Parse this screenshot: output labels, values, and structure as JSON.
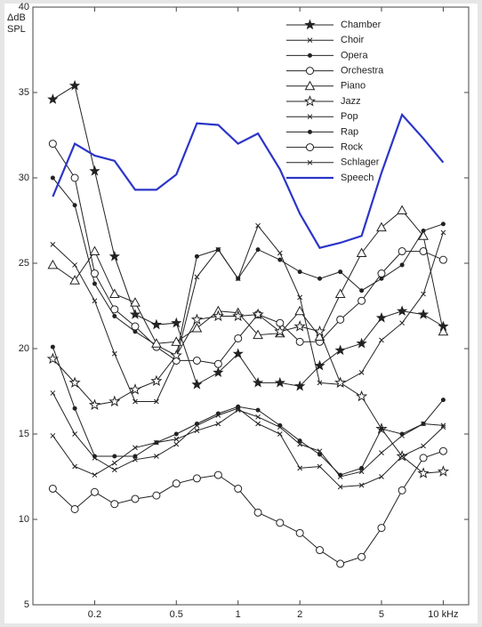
{
  "chart_data": {
    "type": "line",
    "ylabel": [
      "ΔdB",
      "SPL"
    ],
    "x": [
      0.125,
      0.16,
      0.2,
      0.25,
      0.315,
      0.4,
      0.5,
      0.63,
      0.8,
      1,
      1.25,
      1.6,
      2,
      2.5,
      3.15,
      4,
      5,
      6.3,
      8,
      10
    ],
    "xlim": [
      0.1,
      13.3
    ],
    "ylim": [
      5,
      40
    ],
    "xscale": "log",
    "xticks": [
      0.2,
      0.5,
      1,
      2,
      5,
      {
        "value": 10,
        "label": "10 kHz"
      }
    ],
    "yticks": [
      5,
      10,
      15,
      20,
      25,
      30,
      35,
      40
    ],
    "legend": "upper right",
    "series": [
      {
        "name": "Chamber",
        "color": "#222222",
        "marker": "star",
        "values": [
          34.6,
          35.4,
          30.4,
          25.4,
          22.0,
          21.4,
          21.5,
          17.9,
          18.6,
          19.7,
          18.0,
          18.0,
          17.8,
          19.0,
          19.9,
          20.3,
          21.8,
          22.2,
          22.0,
          21.3
        ]
      },
      {
        "name": "Choir",
        "color": "#222222",
        "marker": "x",
        "values": [
          26.1,
          24.9,
          22.8,
          19.7,
          16.9,
          16.9,
          19.4,
          24.2,
          25.8,
          24.1,
          27.2,
          25.6,
          23.0,
          18.0,
          17.9,
          18.6,
          20.5,
          21.5,
          23.2,
          26.8
        ]
      },
      {
        "name": "Opera",
        "color": "#222222",
        "marker": "dot",
        "values": [
          30.0,
          28.4,
          23.8,
          21.9,
          21.0,
          20.2,
          19.6,
          25.4,
          25.8,
          24.1,
          25.8,
          25.2,
          24.5,
          24.1,
          24.5,
          23.4,
          24.1,
          24.9,
          26.9,
          27.3
        ]
      },
      {
        "name": "Orchestra",
        "color": "#222222",
        "marker": "circle",
        "values": [
          32.0,
          30.0,
          24.4,
          22.3,
          21.3,
          20.1,
          19.3,
          19.3,
          19.1,
          20.6,
          22.0,
          21.5,
          20.4,
          20.4,
          21.7,
          22.8,
          24.4,
          25.7,
          25.7,
          25.2
        ]
      },
      {
        "name": "Piano",
        "color": "#222222",
        "marker": "triangle",
        "values": [
          24.9,
          24.0,
          25.7,
          23.2,
          22.7,
          20.3,
          20.4,
          21.2,
          22.2,
          22.1,
          20.8,
          20.9,
          22.2,
          20.7,
          23.2,
          25.6,
          27.1,
          28.1,
          26.6,
          21.0
        ]
      },
      {
        "name": "Jazz",
        "color": "#222222",
        "marker": "star-open",
        "values": [
          19.4,
          18.0,
          16.7,
          16.9,
          17.6,
          18.1,
          19.6,
          21.7,
          21.9,
          21.9,
          22.0,
          21.0,
          21.3,
          21.0,
          18.0,
          17.2,
          15.3,
          13.7,
          12.7,
          12.8
        ]
      },
      {
        "name": "Pop",
        "color": "#222222",
        "marker": "x",
        "values": [
          14.9,
          13.1,
          12.6,
          13.3,
          14.2,
          14.5,
          14.7,
          15.2,
          15.6,
          16.4,
          16.0,
          15.4,
          14.4,
          14.0,
          12.5,
          12.8,
          13.9,
          14.9,
          15.6,
          15.5
        ]
      },
      {
        "name": "Rap",
        "color": "#222222",
        "marker": "dot",
        "values": [
          20.1,
          16.5,
          13.7,
          13.7,
          13.7,
          14.5,
          15.0,
          15.6,
          16.2,
          16.6,
          16.4,
          15.5,
          14.6,
          13.8,
          12.6,
          13.0,
          15.3,
          15.0,
          15.6,
          17.0
        ]
      },
      {
        "name": "Rock",
        "color": "#222222",
        "marker": "circle",
        "values": [
          11.8,
          10.6,
          11.6,
          10.9,
          11.2,
          11.4,
          12.1,
          12.4,
          12.6,
          11.8,
          10.4,
          9.8,
          9.2,
          8.2,
          7.4,
          7.8,
          9.5,
          11.7,
          13.6,
          14.0
        ]
      },
      {
        "name": "Schlager",
        "color": "#222222",
        "marker": "x",
        "values": [
          17.4,
          15.0,
          13.6,
          12.9,
          13.5,
          13.7,
          14.4,
          15.5,
          16.1,
          16.5,
          15.6,
          15.0,
          13.0,
          13.1,
          11.9,
          12.0,
          12.5,
          13.7,
          14.3,
          15.4
        ]
      },
      {
        "name": "Speech",
        "color": "#2b35c8",
        "marker": "none",
        "values": [
          28.9,
          32.0,
          31.3,
          31.0,
          29.3,
          29.3,
          30.2,
          33.2,
          33.1,
          32.0,
          32.6,
          30.5,
          27.9,
          25.9,
          26.2,
          26.6,
          30.3,
          33.7,
          32.3,
          30.9
        ]
      }
    ]
  }
}
